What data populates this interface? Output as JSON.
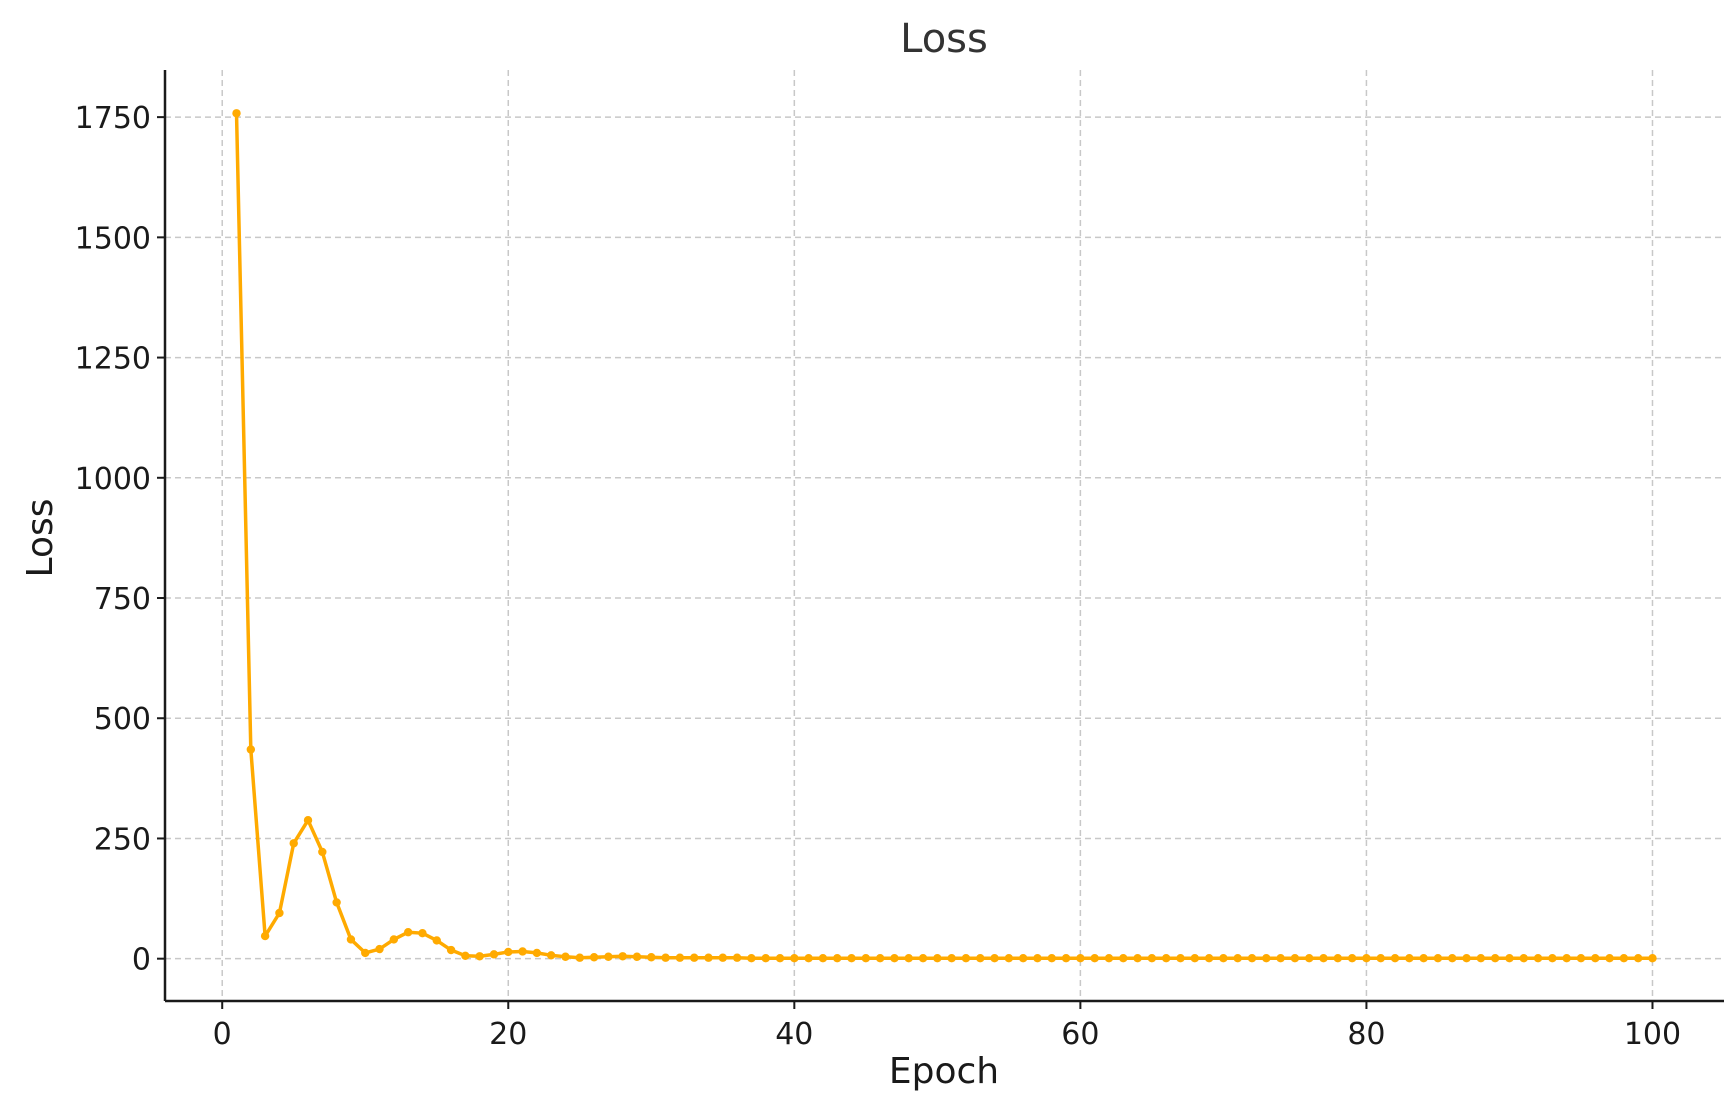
{
  "chart_data": {
    "type": "line",
    "title": "Loss",
    "xlabel": "Epoch",
    "ylabel": "Loss",
    "xlim": [
      -4,
      105
    ],
    "ylim": [
      -88,
      1848
    ],
    "xticks": [
      0,
      20,
      40,
      60,
      80,
      100
    ],
    "yticks": [
      0,
      250,
      500,
      750,
      1000,
      1250,
      1500,
      1750
    ],
    "grid": true,
    "colors": {
      "line": "#FFAA00",
      "grid": "#C8C8C8",
      "axis": "#1A1A1A",
      "title": "#333333"
    },
    "series": [
      {
        "x": [
          1,
          2,
          3,
          4,
          5,
          6,
          7,
          8,
          9,
          10,
          11,
          12,
          13,
          14,
          15,
          16,
          17,
          18,
          19,
          20,
          21,
          22,
          23,
          24,
          25,
          26,
          27,
          28,
          29,
          30,
          31,
          32,
          33,
          34,
          35,
          36,
          37,
          38,
          39,
          40,
          41,
          42,
          43,
          44,
          45,
          46,
          47,
          48,
          49,
          50,
          51,
          52,
          53,
          54,
          55,
          56,
          57,
          58,
          59,
          60,
          61,
          62,
          63,
          64,
          65,
          66,
          67,
          68,
          69,
          70,
          71,
          72,
          73,
          74,
          75,
          76,
          77,
          78,
          79,
          80,
          81,
          82,
          83,
          84,
          85,
          86,
          87,
          88,
          89,
          90,
          91,
          92,
          93,
          94,
          95,
          96,
          97,
          98,
          99,
          100
        ],
        "values": [
          1758,
          435,
          47,
          95,
          240,
          288,
          222,
          117,
          40,
          12,
          20,
          40,
          55,
          53,
          38,
          18,
          6,
          5,
          9,
          14,
          15,
          12,
          7,
          4,
          2,
          3,
          4,
          5,
          4,
          3,
          2,
          2,
          2,
          2,
          2,
          2,
          1,
          1,
          1,
          1,
          1,
          1,
          1,
          1,
          1,
          1,
          1,
          1,
          1,
          1,
          1,
          1,
          1,
          1,
          1,
          1,
          1,
          1,
          1,
          1,
          1,
          1,
          1,
          1,
          1,
          1,
          1,
          1,
          1,
          1,
          1,
          1,
          1,
          1,
          1,
          1,
          1,
          1,
          1,
          1,
          1,
          1,
          1,
          1,
          1,
          1,
          1,
          1,
          1,
          1,
          1,
          1,
          1,
          1,
          1,
          1,
          1,
          1,
          1,
          1
        ]
      }
    ]
  }
}
